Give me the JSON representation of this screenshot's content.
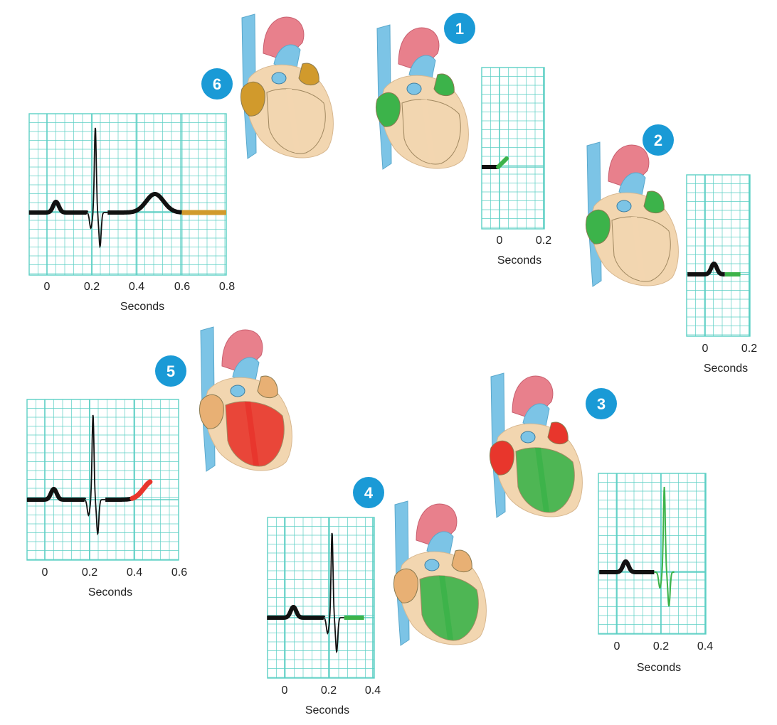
{
  "colors": {
    "grid": "#5ccfc4",
    "trace": "#111111",
    "badge": "#1a9ad6",
    "stage1": "#3cb34a",
    "stage2": "#3cb34a",
    "stage3": "#3cb34a",
    "stage4": "#3cb34a",
    "stage5": "#e8362c",
    "stage6": "#d19a2c",
    "aorta": "#e8808c",
    "vena": "#7cc4e6",
    "myocardium": "#f2d6b0",
    "atria_default": "#e8b074"
  },
  "panels": [
    {
      "step": "1",
      "axis_label": "Seconds",
      "ticks": [
        "0",
        "0.2"
      ],
      "x_range": [
        -0.08,
        0.2
      ],
      "highlight_color_key": "stage1",
      "heart_state": {
        "atria": "stage1",
        "ventricles": "myocardium",
        "septum": "myocardium"
      }
    },
    {
      "step": "2",
      "axis_label": "Seconds",
      "ticks": [
        "0",
        "0.2"
      ],
      "x_range": [
        -0.08,
        0.2
      ],
      "highlight_color_key": "stage2",
      "heart_state": {
        "atria": "stage2",
        "ventricles": "myocardium",
        "septum": "myocardium"
      }
    },
    {
      "step": "3",
      "axis_label": "Seconds",
      "ticks": [
        "0",
        "0.2",
        "0.4"
      ],
      "x_range": [
        -0.08,
        0.4
      ],
      "highlight_color_key": "stage3",
      "heart_state": {
        "atria": "stage5",
        "ventricles": "stage3",
        "septum": "stage3"
      }
    },
    {
      "step": "4",
      "axis_label": "Seconds",
      "ticks": [
        "0",
        "0.2",
        "0.4"
      ],
      "x_range": [
        -0.08,
        0.4
      ],
      "highlight_color_key": "stage4",
      "heart_state": {
        "atria": "atria_default",
        "ventricles": "stage4",
        "septum": "stage4"
      }
    },
    {
      "step": "5",
      "axis_label": "Seconds",
      "ticks": [
        "0",
        "0.2",
        "0.4",
        "0.6"
      ],
      "x_range": [
        -0.08,
        0.6
      ],
      "highlight_color_key": "stage5",
      "heart_state": {
        "atria": "atria_default",
        "ventricles": "stage5",
        "septum": "stage5"
      }
    },
    {
      "step": "6",
      "axis_label": "Seconds",
      "ticks": [
        "0",
        "0.2",
        "0.4",
        "0.6",
        "0.8"
      ],
      "x_range": [
        -0.08,
        0.8
      ],
      "highlight_color_key": "stage6",
      "heart_state": {
        "atria": "stage6",
        "ventricles": "myocardium",
        "septum": "myocardium"
      }
    }
  ]
}
